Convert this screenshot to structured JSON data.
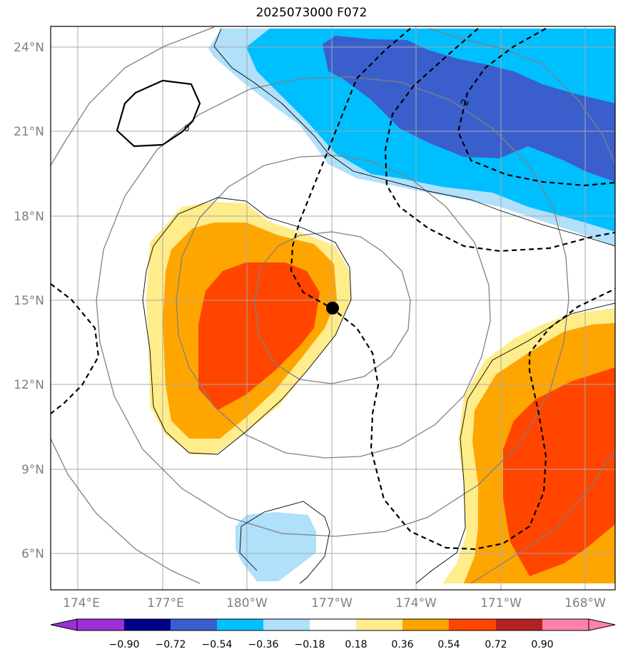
{
  "title": "2025073000 F072",
  "map": {
    "lat_labels": [
      "24°N",
      "21°N",
      "18°N",
      "15°N",
      "12°N",
      "9°N",
      "6°N"
    ],
    "lat_values": [
      24,
      21,
      18,
      15,
      12,
      9,
      6
    ],
    "lon_labels": [
      "174°E",
      "177°E",
      "180°W",
      "177°W",
      "174°W",
      "171°W",
      "168°W"
    ],
    "lon_values": [
      174,
      177,
      180,
      183,
      186,
      189,
      192
    ],
    "center_marker": {
      "lon": 183.0,
      "lat": 14.7
    },
    "contour_label": "2",
    "open_contour_label": "0"
  },
  "colorbar": {
    "ticks": [
      "−0.90",
      "−0.72",
      "−0.54",
      "−0.36",
      "−0.18",
      "0.18",
      "0.36",
      "0.54",
      "0.72",
      "0.90"
    ],
    "colors": [
      "#9b30d4",
      "#00008b",
      "#3a5fcd",
      "#00bfff",
      "#b0e0fa",
      "#ffffff",
      "#ffec8b",
      "#ffa500",
      "#ff4500",
      "#b22222",
      "#ff82ab"
    ]
  }
}
